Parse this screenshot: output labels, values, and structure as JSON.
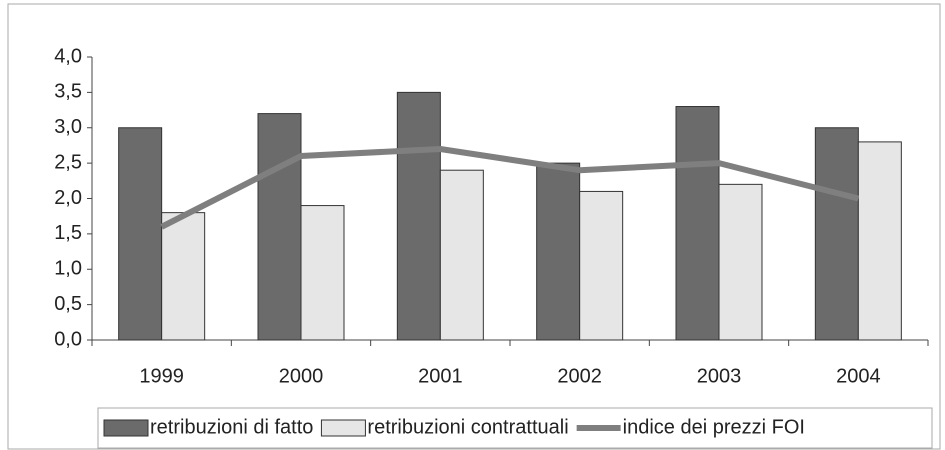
{
  "chart_data": {
    "type": "bar",
    "categories": [
      "1999",
      "2000",
      "2001",
      "2002",
      "2003",
      "2004"
    ],
    "series": [
      {
        "name": "retribuzioni di fatto",
        "color": "#6b6b6b",
        "values": [
          3.0,
          3.2,
          3.5,
          2.5,
          3.3,
          3.0
        ]
      },
      {
        "name": "retribuzioni contrattuali",
        "color": "#e6e6e6",
        "values": [
          1.8,
          1.9,
          2.4,
          2.1,
          2.2,
          2.8
        ]
      },
      {
        "name": "indice dei prezzi FOI",
        "type": "line",
        "color": "#7f7f7f",
        "values": [
          1.6,
          2.6,
          2.7,
          2.4,
          2.5,
          2.0
        ]
      }
    ],
    "ylim": [
      0,
      4
    ],
    "yticks": [
      {
        "value": 0,
        "label": "0,0"
      },
      {
        "value": 0.5,
        "label": "0,5"
      },
      {
        "value": 1,
        "label": "1,0"
      },
      {
        "value": 1.5,
        "label": "1,5"
      },
      {
        "value": 2,
        "label": "2,0"
      },
      {
        "value": 2.5,
        "label": "2,5"
      },
      {
        "value": 3,
        "label": "3,0"
      },
      {
        "value": 3.5,
        "label": "3,5"
      },
      {
        "value": 4,
        "label": "4,0"
      }
    ],
    "legend": "bottom"
  }
}
